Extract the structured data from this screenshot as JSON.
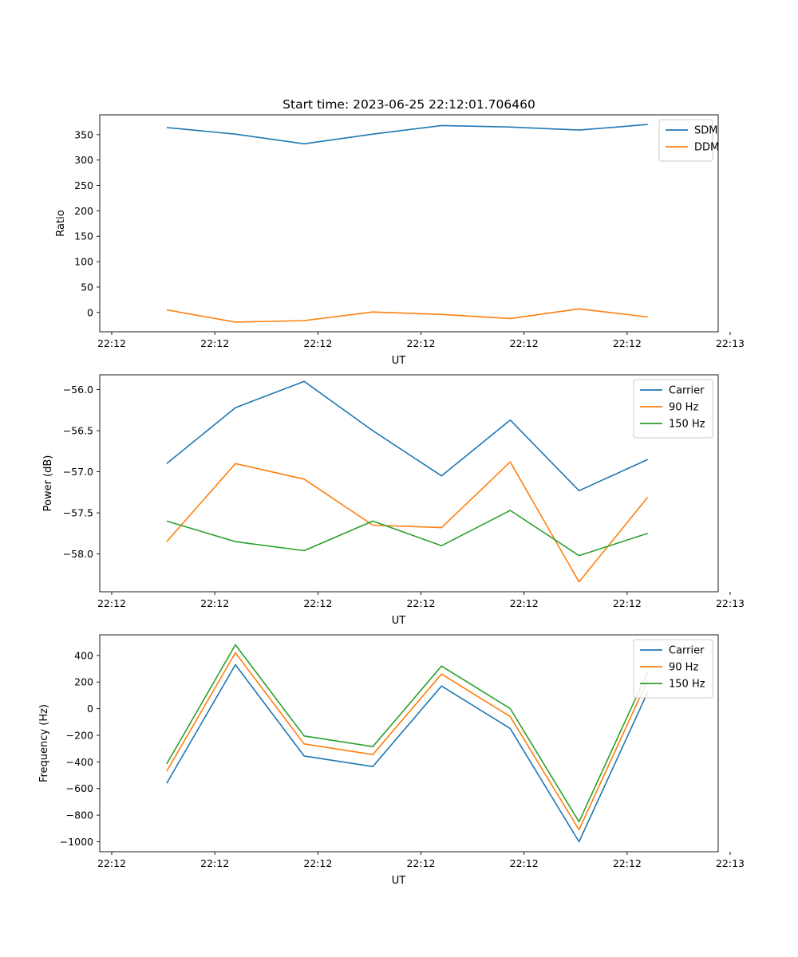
{
  "figure_title": "Start time: 2023-06-25 22:12:01.706460",
  "colors": {
    "blue": "#1f77b4",
    "orange": "#ff7f0e",
    "green": "#2ca02c"
  },
  "chart_data": [
    {
      "type": "line",
      "title": "Start time: 2023-06-25 22:12:01.706460",
      "xlabel": "UT",
      "ylabel": "Ratio",
      "x": [
        1,
        2,
        3,
        4,
        5,
        6,
        7,
        8
      ],
      "xlim": [
        0.2,
        9.2
      ],
      "xticks": [
        {
          "value": 0.2,
          "label": "22:12"
        },
        {
          "value": 1.7,
          "label": "22:12"
        },
        {
          "value": 3.2,
          "label": "22:12"
        },
        {
          "value": 4.7,
          "label": "22:12"
        },
        {
          "value": 6.2,
          "label": "22:12"
        },
        {
          "value": 7.7,
          "label": "22:12"
        },
        {
          "value": 9.2,
          "label": "22:13"
        }
      ],
      "ylim": [
        -38,
        389
      ],
      "yticks": [
        0,
        50,
        100,
        150,
        200,
        250,
        300,
        350
      ],
      "ytick_labels": [
        "0",
        "50",
        "100",
        "150",
        "200",
        "250",
        "300",
        "350"
      ],
      "legend_loc": "upper right",
      "series": [
        {
          "name": "SDM",
          "color": "#1f77b4",
          "values": [
            364,
            351,
            332,
            351,
            368,
            365,
            359,
            370
          ]
        },
        {
          "name": "DDM",
          "color": "#ff7f0e",
          "values": [
            5,
            -19,
            -16,
            1,
            -4,
            -12,
            7,
            -9
          ]
        }
      ]
    },
    {
      "type": "line",
      "title": "",
      "xlabel": "UT",
      "ylabel": "Power (dB)",
      "x": [
        1,
        2,
        3,
        4,
        5,
        6,
        7,
        8
      ],
      "xlim": [
        0.2,
        9.2
      ],
      "xticks": [
        {
          "value": 0.2,
          "label": "22:12"
        },
        {
          "value": 1.7,
          "label": "22:12"
        },
        {
          "value": 3.2,
          "label": "22:12"
        },
        {
          "value": 4.7,
          "label": "22:12"
        },
        {
          "value": 6.2,
          "label": "22:12"
        },
        {
          "value": 7.7,
          "label": "22:12"
        },
        {
          "value": 9.2,
          "label": "22:13"
        }
      ],
      "ylim": [
        -58.46,
        -55.82
      ],
      "yticks": [
        -58.0,
        -57.5,
        -57.0,
        -56.5,
        -56.0
      ],
      "ytick_labels": [
        "−58.0",
        "−57.5",
        "−57.0",
        "−56.5",
        "−56.0"
      ],
      "legend_loc": "upper right",
      "series": [
        {
          "name": "Carrier",
          "color": "#1f77b4",
          "values": [
            -56.9,
            -56.22,
            -55.9,
            -56.5,
            -57.05,
            -56.37,
            -57.23,
            -56.85
          ]
        },
        {
          "name": "90 Hz",
          "color": "#ff7f0e",
          "values": [
            -57.85,
            -56.9,
            -57.09,
            -57.65,
            -57.68,
            -56.88,
            -58.34,
            -57.31
          ]
        },
        {
          "name": "150 Hz",
          "color": "#2ca02c",
          "values": [
            -57.6,
            -57.85,
            -57.96,
            -57.6,
            -57.9,
            -57.47,
            -58.02,
            -57.75
          ]
        }
      ]
    },
    {
      "type": "line",
      "title": "",
      "xlabel": "UT",
      "ylabel": "Frequency (Hz)",
      "x": [
        1,
        2,
        3,
        4,
        5,
        6,
        7,
        8
      ],
      "xlim": [
        0.2,
        9.2
      ],
      "xticks": [
        {
          "value": 0.2,
          "label": "22:12"
        },
        {
          "value": 1.7,
          "label": "22:12"
        },
        {
          "value": 3.2,
          "label": "22:12"
        },
        {
          "value": 4.7,
          "label": "22:12"
        },
        {
          "value": 6.2,
          "label": "22:12"
        },
        {
          "value": 7.7,
          "label": "22:12"
        },
        {
          "value": 9.2,
          "label": "22:13"
        }
      ],
      "ylim": [
        -1075,
        555
      ],
      "yticks": [
        -1000,
        -800,
        -600,
        -400,
        -200,
        0,
        200,
        400
      ],
      "ytick_labels": [
        "−1000",
        "−800",
        "−600",
        "−400",
        "−200",
        "0",
        "200",
        "400"
      ],
      "legend_loc": "upper right",
      "series": [
        {
          "name": "Carrier",
          "color": "#1f77b4",
          "values": [
            -560,
            330,
            -355,
            -435,
            170,
            -150,
            -1000,
            125
          ]
        },
        {
          "name": "90 Hz",
          "color": "#ff7f0e",
          "values": [
            -470,
            420,
            -265,
            -345,
            260,
            -60,
            -910,
            215
          ]
        },
        {
          "name": "150 Hz",
          "color": "#2ca02c",
          "values": [
            -415,
            480,
            -205,
            -285,
            320,
            0,
            -850,
            275
          ]
        }
      ]
    }
  ]
}
